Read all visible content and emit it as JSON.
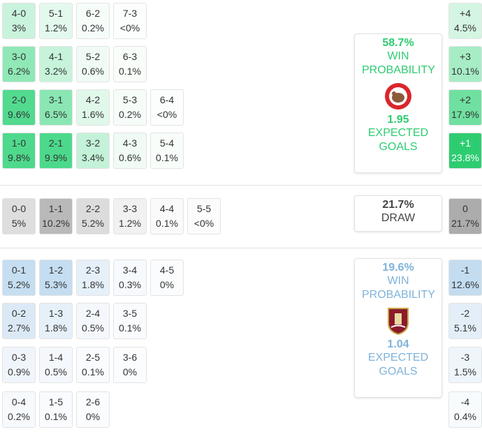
{
  "home": {
    "rows": [
      [
        {
          "score": "4-0",
          "prob": "3%",
          "color": "#c9f3dc"
        },
        {
          "score": "5-1",
          "prob": "1.2%",
          "color": "#e4f9ed"
        },
        {
          "score": "6-2",
          "prob": "0.2%",
          "color": "#f6fdf9"
        },
        {
          "score": "7-3",
          "prob": "<0%",
          "color": "#fbfefc"
        }
      ],
      [
        {
          "score": "3-0",
          "prob": "6.2%",
          "color": "#8fe8b6"
        },
        {
          "score": "4-1",
          "prob": "3.2%",
          "color": "#c6f3da"
        },
        {
          "score": "5-2",
          "prob": "0.6%",
          "color": "#effbf4"
        },
        {
          "score": "6-3",
          "prob": "0.1%",
          "color": "#f8fdfa"
        }
      ],
      [
        {
          "score": "2-0",
          "prob": "9.6%",
          "color": "#52da8f"
        },
        {
          "score": "3-1",
          "prob": "6.5%",
          "color": "#8ae7b3"
        },
        {
          "score": "4-2",
          "prob": "1.6%",
          "color": "#e0f8ea"
        },
        {
          "score": "5-3",
          "prob": "0.2%",
          "color": "#f6fdf9"
        },
        {
          "score": "6-4",
          "prob": "<0%",
          "color": "#fbfefc"
        }
      ],
      [
        {
          "score": "1-0",
          "prob": "9.8%",
          "color": "#4ed98c"
        },
        {
          "score": "2-1",
          "prob": "9.9%",
          "color": "#4cd98b"
        },
        {
          "score": "3-2",
          "prob": "3.4%",
          "color": "#c3f2d8"
        },
        {
          "score": "4-3",
          "prob": "0.6%",
          "color": "#effbf4"
        },
        {
          "score": "5-4",
          "prob": "0.1%",
          "color": "#f8fdfa"
        }
      ]
    ]
  },
  "draw": {
    "cells": [
      {
        "score": "0-0",
        "prob": "5%",
        "color": "#dedede"
      },
      {
        "score": "1-1",
        "prob": "10.2%",
        "color": "#b9b9b9"
      },
      {
        "score": "2-2",
        "prob": "5.2%",
        "color": "#dcdcdc"
      },
      {
        "score": "3-3",
        "prob": "1.2%",
        "color": "#f1f1f1"
      },
      {
        "score": "4-4",
        "prob": "0.1%",
        "color": "#fafafa"
      },
      {
        "score": "5-5",
        "prob": "<0%",
        "color": "#fcfcfc"
      }
    ]
  },
  "away": {
    "rows": [
      [
        {
          "score": "0-1",
          "prob": "5.2%",
          "color": "#c6def1"
        },
        {
          "score": "1-2",
          "prob": "5.3%",
          "color": "#c4ddf1"
        },
        {
          "score": "2-3",
          "prob": "1.8%",
          "color": "#e6f0f9"
        },
        {
          "score": "3-4",
          "prob": "0.3%",
          "color": "#f6f9fd"
        },
        {
          "score": "4-5",
          "prob": "0%",
          "color": "#fbfcfe"
        }
      ],
      [
        {
          "score": "0-2",
          "prob": "2.7%",
          "color": "#dbe9f6"
        },
        {
          "score": "1-3",
          "prob": "1.8%",
          "color": "#e6f0f9"
        },
        {
          "score": "2-4",
          "prob": "0.5%",
          "color": "#f4f8fc"
        },
        {
          "score": "3-5",
          "prob": "0.1%",
          "color": "#f9fbfe"
        }
      ],
      [
        {
          "score": "0-3",
          "prob": "0.9%",
          "color": "#eff5fb"
        },
        {
          "score": "1-4",
          "prob": "0.5%",
          "color": "#f4f8fc"
        },
        {
          "score": "2-5",
          "prob": "0.1%",
          "color": "#f9fbfe"
        },
        {
          "score": "3-6",
          "prob": "0%",
          "color": "#fbfcfe"
        }
      ],
      [
        {
          "score": "0-4",
          "prob": "0.2%",
          "color": "#f7fafd"
        },
        {
          "score": "1-5",
          "prob": "0.1%",
          "color": "#f9fbfe"
        },
        {
          "score": "2-6",
          "prob": "0%",
          "color": "#fbfcfe"
        }
      ]
    ]
  },
  "margins": [
    {
      "label": "+4",
      "prob": "4.5%",
      "color": "#d5f5e3",
      "text_color": "#333"
    },
    {
      "label": "+3",
      "prob": "10.1%",
      "color": "#a6edc6",
      "text_color": "#333"
    },
    {
      "label": "+2",
      "prob": "17.9%",
      "color": "#6fe0a0",
      "text_color": "#333"
    },
    {
      "label": "+1",
      "prob": "23.8%",
      "color": "#2ecc71",
      "text_color": "#fff"
    },
    {
      "label": "0",
      "prob": "21.7%",
      "color": "#acacac",
      "text_color": "#333"
    },
    {
      "label": "-1",
      "prob": "12.6%",
      "color": "#c3dcf0",
      "text_color": "#333"
    },
    {
      "label": "-2",
      "prob": "5.1%",
      "color": "#e3eef8",
      "text_color": "#333"
    },
    {
      "label": "-3",
      "prob": "1.5%",
      "color": "#eef5fb",
      "text_color": "#333"
    },
    {
      "label": "-4",
      "prob": "0.4%",
      "color": "#f8fbfd",
      "text_color": "#333"
    }
  ],
  "summaries": {
    "home": {
      "probability": "58.7%",
      "probability_label": "WIN PROBABILITY",
      "expected_goals": "1.95",
      "expected_goals_label": "EXPECTED GOALS"
    },
    "draw": {
      "probability": "21.7%",
      "probability_label": "DRAW"
    },
    "away": {
      "probability": "19.6%",
      "probability_label": "WIN PROBABILITY",
      "expected_goals": "1.04",
      "expected_goals_label": "EXPECTED GOALS"
    }
  }
}
